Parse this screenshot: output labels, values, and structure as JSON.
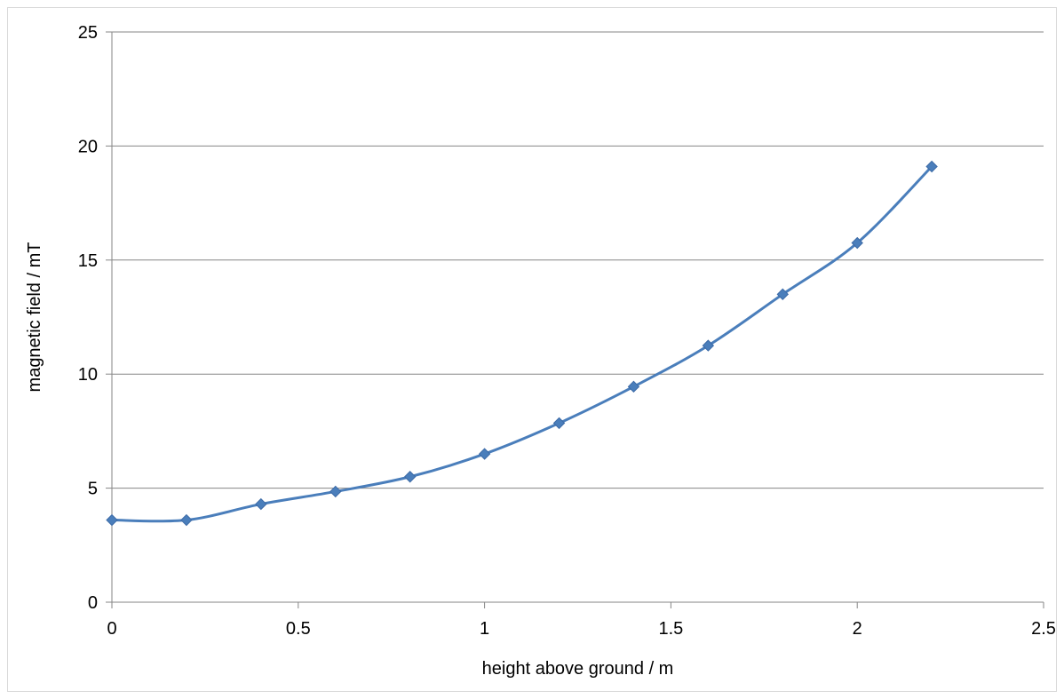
{
  "chart_data": {
    "type": "line",
    "title": "",
    "xlabel": "height above ground  /  m",
    "ylabel": "magnetic field  /  mT",
    "xlim": [
      0,
      2.5
    ],
    "ylim": [
      0,
      25
    ],
    "x_ticks": [
      0,
      0.5,
      1,
      1.5,
      2,
      2.5
    ],
    "x_tick_labels": [
      "0",
      "0.5",
      "1",
      "1.5",
      "2",
      "2.5"
    ],
    "y_ticks": [
      0,
      5,
      10,
      15,
      20,
      25
    ],
    "y_tick_labels": [
      "0",
      "5",
      "10",
      "15",
      "20",
      "25"
    ],
    "grid": "horizontal major gridlines",
    "legend": "none",
    "marker": "diamond",
    "smooth": true,
    "series_color": "#4a7ebb",
    "series": [
      {
        "x": [
          0,
          0.2,
          0.4,
          0.6,
          0.8,
          1.0,
          1.2,
          1.4,
          1.6,
          1.8,
          2.0,
          2.2
        ],
        "values": [
          3.6,
          3.6,
          4.3,
          4.85,
          5.5,
          6.5,
          7.85,
          9.45,
          11.25,
          13.5,
          15.75,
          19.1
        ]
      }
    ]
  }
}
